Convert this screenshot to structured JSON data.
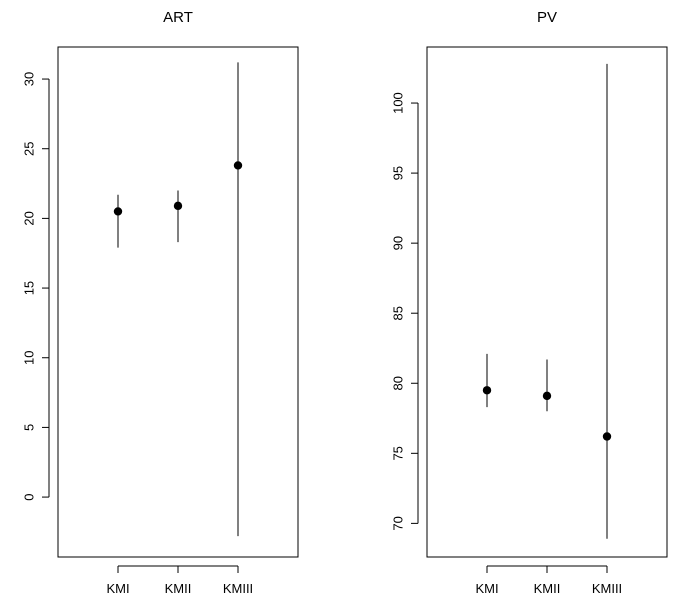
{
  "chart_data": [
    {
      "type": "scatter",
      "title": "ART",
      "categories": [
        "KMI",
        "KMII",
        "KMIII"
      ],
      "values": [
        20.5,
        20.9,
        23.8
      ],
      "lower": [
        17.9,
        18.3,
        -2.8
      ],
      "upper": [
        21.7,
        22.0,
        31.2
      ],
      "ylim": [
        -4.3,
        32.3
      ],
      "xlim": [
        0,
        4
      ],
      "yticks": [
        0,
        5,
        10,
        15,
        20,
        25,
        30
      ],
      "error_bars": true,
      "grid": false,
      "legend": "none"
    },
    {
      "type": "scatter",
      "title": "PV",
      "categories": [
        "KMI",
        "KMII",
        "KMIII"
      ],
      "values": [
        79.5,
        79.1,
        76.2
      ],
      "lower": [
        78.3,
        78.0,
        68.9
      ],
      "upper": [
        82.1,
        81.7,
        102.8
      ],
      "ylim": [
        67.6,
        104.0
      ],
      "xlim": [
        0,
        4
      ],
      "yticks": [
        70,
        75,
        80,
        85,
        90,
        95,
        100
      ],
      "error_bars": true,
      "grid": false,
      "legend": "none"
    }
  ]
}
